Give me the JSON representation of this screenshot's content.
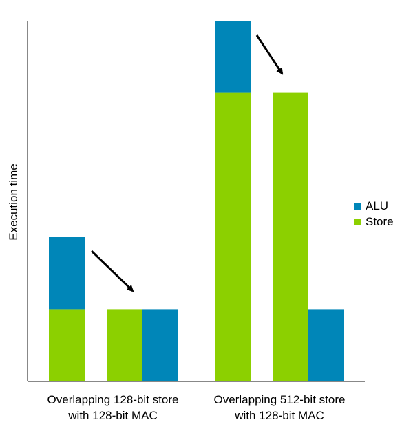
{
  "chart_data": {
    "type": "bar",
    "stacked": true,
    "ylabel": "Execution time",
    "xlabel": "",
    "yaxis_ticks": false,
    "grid": false,
    "legend_position": "right",
    "ylim": [
      0,
      10
    ],
    "groups": [
      {
        "label_lines": [
          "Overlapping 128-bit store",
          "with 128-bit MAC"
        ],
        "bars": [
          {
            "segments": [
              {
                "series": "Store",
                "value": 2.0
              },
              {
                "series": "ALU",
                "value": 2.0
              }
            ]
          },
          {
            "segments": [
              {
                "series": "Store",
                "value": 2.0
              }
            ]
          },
          {
            "segments": [
              {
                "series": "ALU",
                "value": 2.0
              }
            ]
          }
        ]
      },
      {
        "label_lines": [
          "Overlapping 512-bit store",
          "with 128-bit MAC"
        ],
        "bars": [
          {
            "segments": [
              {
                "series": "Store",
                "value": 8.0
              },
              {
                "series": "ALU",
                "value": 2.0
              }
            ]
          },
          {
            "segments": [
              {
                "series": "Store",
                "value": 8.0
              }
            ]
          },
          {
            "segments": [
              {
                "series": "ALU",
                "value": 2.0
              }
            ]
          }
        ]
      }
    ],
    "series": [
      {
        "name": "ALU",
        "color": "#0086B8"
      },
      {
        "name": "Store",
        "color": "#8CD000"
      }
    ],
    "annotations": [
      {
        "type": "arrow",
        "meaning": "from combined bar to overlapped store bar",
        "group": 0
      },
      {
        "type": "arrow",
        "meaning": "from combined bar to overlapped store bar",
        "group": 1
      }
    ]
  }
}
